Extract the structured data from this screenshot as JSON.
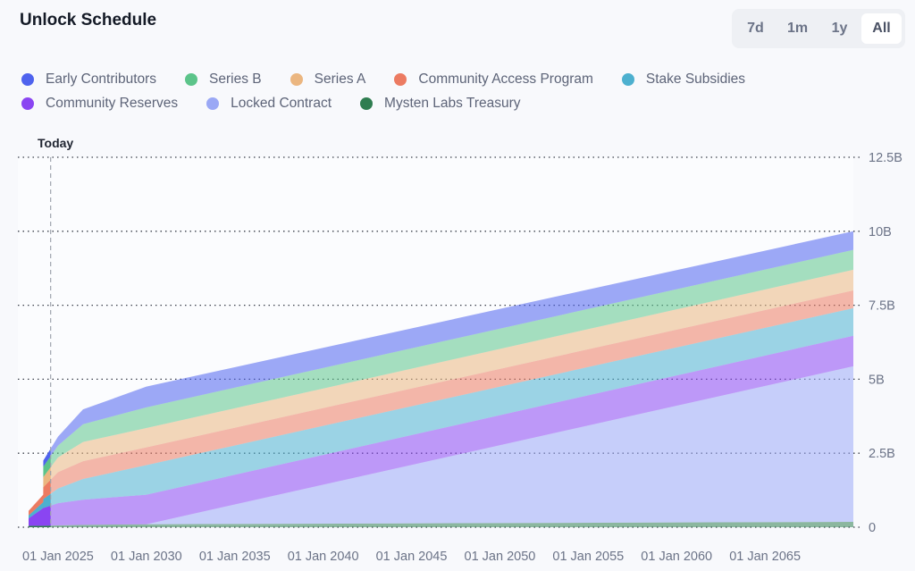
{
  "title": "Unlock Schedule",
  "ranges": [
    {
      "label": "7d"
    },
    {
      "label": "1m"
    },
    {
      "label": "1y"
    },
    {
      "label": "All"
    }
  ],
  "active_range": "All",
  "chart_data": {
    "type": "area",
    "stacked": true,
    "today_label": "Today",
    "today": "2024-08-01",
    "ylim": [
      0,
      12.5
    ],
    "yticks": [
      {
        "v": 0,
        "label": "0"
      },
      {
        "v": 2.5,
        "label": "2.5B"
      },
      {
        "v": 5,
        "label": "5B"
      },
      {
        "v": 7.5,
        "label": "7.5B"
      },
      {
        "v": 10,
        "label": "10B"
      },
      {
        "v": 12.5,
        "label": "12.5B"
      }
    ],
    "yaxis_position": "right",
    "grid": "horizontal-dotted",
    "xlim": [
      "2023-05-03",
      "2070-01-01"
    ],
    "xticks": [
      "01 Jan 2025",
      "01 Jan 2030",
      "01 Jan 2035",
      "01 Jan 2040",
      "01 Jan 2045",
      "01 Jan 2050",
      "01 Jan 2055",
      "01 Jan 2060",
      "01 Jan 2065"
    ],
    "x": [
      "2023-05-03",
      "2024-03-01",
      "2024-03-02",
      "2025-01-01",
      "2026-06-01",
      "2030-01-01",
      "2070-01-01"
    ],
    "legend_position": "top-left",
    "series": [
      {
        "name": "Mysten Labs Treasury",
        "color": "#2f7d50",
        "values": [
          0.05,
          0.05,
          0.05,
          0.06,
          0.08,
          0.1,
          0.18
        ]
      },
      {
        "name": "Locked Contract",
        "color": "#9aa8f5",
        "values": [
          0,
          0,
          0,
          0,
          0,
          0,
          5.26
        ]
      },
      {
        "name": "Community Reserves",
        "color": "#8a45f2",
        "values": [
          0.25,
          0.6,
          0.6,
          0.75,
          0.85,
          1.0,
          1.03
        ]
      },
      {
        "name": "Stake Subsidies",
        "color": "#4db0cf",
        "values": [
          0.1,
          0.2,
          0.3,
          0.5,
          0.7,
          1.0,
          0.93
        ]
      },
      {
        "name": "Community Access Program",
        "color": "#ec7b62",
        "values": [
          0.15,
          0.25,
          0.4,
          0.55,
          0.6,
          0.6,
          0.6
        ]
      },
      {
        "name": "Series A",
        "color": "#ebb680",
        "values": [
          0,
          0,
          0.35,
          0.5,
          0.65,
          0.65,
          0.7
        ]
      },
      {
        "name": "Series B",
        "color": "#5cc48a",
        "values": [
          0,
          0,
          0.35,
          0.4,
          0.6,
          0.7,
          0.67
        ]
      },
      {
        "name": "Early Contributors",
        "color": "#4f63ee",
        "values": [
          0,
          0,
          0.2,
          0.3,
          0.5,
          0.7,
          0.63
        ]
      }
    ]
  },
  "legend_rows": [
    [
      {
        "name": "Early Contributors",
        "color": "#4f63ee"
      },
      {
        "name": "Series B",
        "color": "#5cc48a"
      },
      {
        "name": "Series A",
        "color": "#ebb680"
      },
      {
        "name": "Community Access Program",
        "color": "#ec7b62"
      },
      {
        "name": "Stake Subsidies",
        "color": "#4db0cf"
      }
    ],
    [
      {
        "name": "Community Reserves",
        "color": "#8a45f2"
      },
      {
        "name": "Locked Contract",
        "color": "#9aa8f5"
      },
      {
        "name": "Mysten Labs Treasury",
        "color": "#2f7d50"
      }
    ]
  ]
}
